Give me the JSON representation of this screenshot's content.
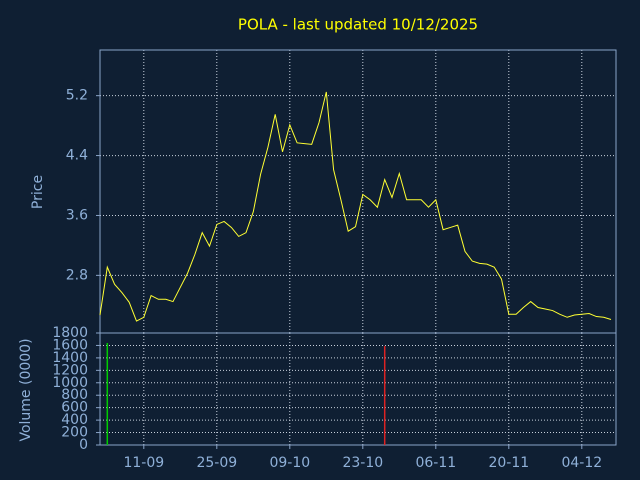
{
  "chart_data": [
    {
      "type": "line",
      "title": "POLA - last updated 10/12/2025",
      "y_label": "Price",
      "color": "#ffff33",
      "grid": true,
      "categories": [
        null,
        null,
        null,
        null,
        null,
        null,
        "11-09",
        null,
        null,
        null,
        null,
        null,
        null,
        null,
        null,
        null,
        "25-09",
        null,
        null,
        null,
        null,
        null,
        null,
        null,
        null,
        null,
        "09-10",
        null,
        null,
        null,
        null,
        null,
        null,
        null,
        null,
        null,
        "23-10",
        null,
        null,
        null,
        null,
        null,
        null,
        null,
        null,
        null,
        "06-11",
        null,
        null,
        null,
        null,
        null,
        null,
        null,
        null,
        null,
        "20-11",
        null,
        null,
        null,
        null,
        null,
        null,
        null,
        null,
        null,
        "04-12",
        null,
        null,
        null,
        null
      ],
      "values": [
        2.27,
        2.91,
        2.68,
        2.57,
        2.44,
        2.19,
        2.24,
        2.53,
        2.48,
        2.48,
        2.45,
        2.64,
        2.83,
        3.08,
        3.37,
        3.19,
        3.48,
        3.52,
        3.44,
        3.32,
        3.37,
        3.65,
        4.15,
        4.51,
        4.95,
        4.45,
        4.81,
        4.57,
        4.56,
        4.55,
        4.84,
        5.25,
        4.21,
        3.81,
        3.39,
        3.45,
        3.88,
        3.81,
        3.71,
        4.08,
        3.84,
        4.16,
        3.81,
        3.81,
        3.81,
        3.71,
        3.81,
        3.41,
        3.44,
        3.47,
        3.12,
        2.99,
        2.96,
        2.95,
        2.91,
        2.75,
        2.28,
        2.28,
        2.37,
        2.45,
        2.37,
        2.35,
        2.33,
        2.28,
        2.24,
        2.27,
        2.28,
        2.29,
        2.25,
        2.24,
        2.21
      ],
      "ylim": [
        2.03,
        5.81
      ],
      "yticks": [
        2.8,
        3.6,
        4.4,
        5.2
      ]
    },
    {
      "type": "bar",
      "y_label": "Volume (0000)",
      "grid": true,
      "values": [
        0,
        1640,
        0,
        0,
        0,
        0,
        0,
        0,
        0,
        0,
        0,
        0,
        0,
        0,
        0,
        0,
        0,
        0,
        0,
        0,
        0,
        0,
        0,
        0,
        0,
        0,
        0,
        0,
        0,
        0,
        0,
        0,
        0,
        0,
        0,
        0,
        0,
        0,
        0,
        1590,
        0,
        0,
        0,
        0,
        0,
        0,
        0,
        0,
        0,
        0,
        0,
        0,
        0,
        0,
        0,
        0,
        0,
        0,
        0,
        0,
        0,
        0,
        0,
        0,
        0,
        0,
        0,
        0,
        0,
        0,
        0
      ],
      "colors": [
        "#00cc00",
        "#00cc00",
        "#00cc00",
        "#00cc00",
        "#00cc00",
        "#00cc00",
        "#00cc00",
        "#00cc00",
        "#00cc00",
        "#00cc00",
        "#00cc00",
        "#00cc00",
        "#00cc00",
        "#00cc00",
        "#00cc00",
        "#00cc00",
        "#00cc00",
        "#00cc00",
        "#00cc00",
        "#00cc00",
        "#00cc00",
        "#00cc00",
        "#00cc00",
        "#00cc00",
        "#00cc00",
        "#00cc00",
        "#00cc00",
        "#00cc00",
        "#00cc00",
        "#00cc00",
        "#00cc00",
        "#00cc00",
        "#00cc00",
        "#00cc00",
        "#00cc00",
        "#00cc00",
        "#00cc00",
        "#00cc00",
        "#00cc00",
        "#dd2222",
        "#00cc00",
        "#00cc00",
        "#00cc00",
        "#00cc00",
        "#00cc00",
        "#00cc00",
        "#00cc00",
        "#00cc00",
        "#00cc00",
        "#00cc00",
        "#00cc00",
        "#00cc00",
        "#00cc00",
        "#00cc00",
        "#00cc00",
        "#00cc00",
        "#00cc00",
        "#00cc00",
        "#00cc00",
        "#00cc00",
        "#00cc00",
        "#00cc00",
        "#00cc00",
        "#00cc00",
        "#00cc00",
        "#00cc00",
        "#00cc00",
        "#00cc00",
        "#00cc00",
        "#00cc00",
        "#00cc00"
      ],
      "ylim": [
        0,
        1800
      ],
      "yticks": [
        0,
        200,
        400,
        600,
        800,
        1000,
        1200,
        1400,
        1600,
        1800
      ]
    }
  ]
}
